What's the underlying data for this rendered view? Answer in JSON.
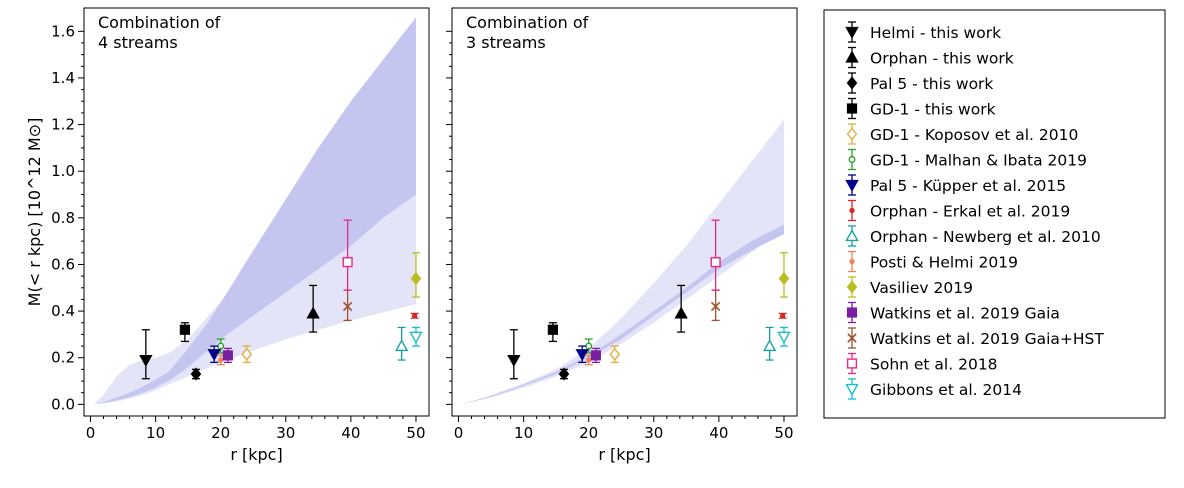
{
  "chart_data": [
    {
      "type": "scatter",
      "title": "",
      "annotation": [
        "Combination of",
        "4 streams"
      ],
      "xlabel": "r [kpc]",
      "ylabel": "M(< r kpc) [10^12 M⊙]",
      "xlim": [
        -1,
        52
      ],
      "ylim": [
        -0.05,
        1.7
      ],
      "xticks": [
        0,
        10,
        20,
        30,
        40,
        50
      ],
      "yticks": [
        0.0,
        0.2,
        0.4,
        0.6,
        0.8,
        1.0,
        1.2,
        1.4,
        1.6
      ],
      "bands": [
        {
          "name": "outer",
          "color": "#e3e4f8",
          "x": [
            0.5,
            2,
            4,
            6,
            8,
            10,
            12,
            15,
            20,
            25,
            30,
            35,
            40,
            45,
            50
          ],
          "lower": [
            0.0,
            0.005,
            0.012,
            0.025,
            0.04,
            0.06,
            0.085,
            0.12,
            0.18,
            0.23,
            0.28,
            0.32,
            0.36,
            0.395,
            0.43
          ],
          "upper": [
            0.0,
            0.04,
            0.12,
            0.17,
            0.19,
            0.2,
            0.22,
            0.28,
            0.44,
            0.56,
            0.67,
            0.75,
            0.8,
            0.86,
            0.9
          ]
        },
        {
          "name": "inner",
          "color": "#c5c6ef",
          "x": [
            1,
            3,
            6,
            9,
            12,
            15,
            18,
            21,
            25,
            30,
            35,
            40,
            45,
            50
          ],
          "lower": [
            0.0,
            0.01,
            0.03,
            0.06,
            0.1,
            0.16,
            0.23,
            0.3,
            0.38,
            0.48,
            0.58,
            0.68,
            0.8,
            0.9
          ],
          "upper": [
            0.0,
            0.02,
            0.05,
            0.09,
            0.14,
            0.24,
            0.35,
            0.48,
            0.66,
            0.88,
            1.1,
            1.3,
            1.48,
            1.66
          ]
        }
      ],
      "series": [
        {
          "name": "Helmi - this work",
          "marker": "tri-down",
          "filled": true,
          "color": "#000000",
          "points": [
            {
              "x": 8.5,
              "y": 0.19,
              "lo": 0.11,
              "hi": 0.32
            }
          ]
        },
        {
          "name": "Orphan - this work",
          "marker": "tri-up",
          "filled": true,
          "color": "#000000",
          "points": [
            {
              "x": 34.2,
              "y": 0.39,
              "lo": 0.31,
              "hi": 0.51
            }
          ]
        },
        {
          "name": "Pal 5 - this work",
          "marker": "diamond",
          "filled": true,
          "color": "#000000",
          "points": [
            {
              "x": 16.2,
              "y": 0.13,
              "lo": 0.11,
              "hi": 0.15
            }
          ]
        },
        {
          "name": "GD-1 - this work",
          "marker": "square",
          "filled": true,
          "color": "#000000",
          "points": [
            {
              "x": 14.5,
              "y": 0.32,
              "lo": 0.27,
              "hi": 0.35
            }
          ]
        },
        {
          "name": "GD-1 - Koposov et al. 2010",
          "marker": "diamond",
          "filled": false,
          "color": "#e5ae38",
          "points": [
            {
              "x": 24.0,
              "y": 0.215,
              "lo": 0.18,
              "hi": 0.25
            }
          ]
        },
        {
          "name": "GD-1 - Malhan & Ibata 2019",
          "marker": "circle-small",
          "filled": false,
          "color": "#2ca02c",
          "points": [
            {
              "x": 20.0,
              "y": 0.25,
              "lo": 0.22,
              "hi": 0.28
            }
          ]
        },
        {
          "name": "Pal 5 - Küpper et al.  2015",
          "marker": "tri-down",
          "filled": true,
          "color": "#00008b",
          "points": [
            {
              "x": 19.0,
              "y": 0.215,
              "lo": 0.18,
              "hi": 0.25
            }
          ]
        },
        {
          "name": "Orphan - Erkal et al. 2019",
          "marker": "dot",
          "filled": true,
          "color": "#d62728",
          "points": [
            {
              "x": 49.8,
              "y": 0.38,
              "lo": 0.37,
              "hi": 0.39
            }
          ]
        },
        {
          "name": "Orphan - Newberg et al. 2010",
          "marker": "tri-up",
          "filled": false,
          "color": "#17a2a2",
          "points": [
            {
              "x": 47.8,
              "y": 0.25,
              "lo": 0.19,
              "hi": 0.33
            }
          ]
        },
        {
          "name": "Posti & Helmi 2019",
          "marker": "dot",
          "filled": true,
          "color": "#f0835a",
          "points": [
            {
              "x": 20.0,
              "y": 0.19,
              "lo": 0.17,
              "hi": 0.21
            }
          ]
        },
        {
          "name": "Vasiliev 2019",
          "marker": "diamond",
          "filled": true,
          "color": "#bcbd22",
          "points": [
            {
              "x": 50.0,
              "y": 0.54,
              "lo": 0.46,
              "hi": 0.65
            }
          ]
        },
        {
          "name": "Watkins et al.  2019 Gaia",
          "marker": "square",
          "filled": true,
          "color": "#7b1fa2",
          "points": [
            {
              "x": 21.1,
              "y": 0.21,
              "lo": 0.18,
              "hi": 0.24
            }
          ]
        },
        {
          "name": "Watkins et al.  2019 Gaia$+$HST",
          "marker": "x",
          "filled": true,
          "color": "#a0522d",
          "points": [
            {
              "x": 39.5,
              "y": 0.42,
              "lo": 0.36,
              "hi": 0.49
            }
          ]
        },
        {
          "name": "Sohn et al.  2018",
          "marker": "square",
          "filled": false,
          "color": "#e7298a",
          "points": [
            {
              "x": 39.5,
              "y": 0.61,
              "lo": 0.49,
              "hi": 0.79
            }
          ]
        },
        {
          "name": "Gibbons et al.  2014",
          "marker": "tri-down",
          "filled": false,
          "color": "#17becf",
          "points": [
            {
              "x": 50.0,
              "y": 0.29,
              "lo": 0.25,
              "hi": 0.33
            }
          ]
        }
      ]
    },
    {
      "type": "scatter",
      "title": "",
      "annotation": [
        "Combination of",
        "3 streams"
      ],
      "xlabel": "r [kpc]",
      "ylabel": "",
      "xlim": [
        -1,
        52
      ],
      "ylim": [
        -0.05,
        1.7
      ],
      "xticks": [
        0,
        10,
        20,
        30,
        40,
        50
      ],
      "yticks": [
        0.0,
        0.2,
        0.4,
        0.6,
        0.8,
        1.0,
        1.2,
        1.4,
        1.6
      ],
      "bands": [
        {
          "name": "outer",
          "color": "#e3e4f8",
          "x": [
            0.5,
            5,
            10,
            15,
            20,
            25,
            30,
            35,
            40,
            45,
            50
          ],
          "lower": [
            0.0,
            0.03,
            0.07,
            0.12,
            0.18,
            0.26,
            0.35,
            0.45,
            0.55,
            0.65,
            0.76
          ],
          "upper": [
            0.0,
            0.04,
            0.09,
            0.15,
            0.24,
            0.37,
            0.52,
            0.68,
            0.86,
            1.04,
            1.22
          ]
        },
        {
          "name": "inner",
          "color": "#c5c6ef",
          "x": [
            0.5,
            5,
            10,
            15,
            20,
            25,
            30,
            35,
            40,
            45,
            50
          ],
          "lower": [
            0.0,
            0.03,
            0.08,
            0.13,
            0.2,
            0.28,
            0.38,
            0.48,
            0.58,
            0.66,
            0.73
          ],
          "upper": [
            0.0,
            0.035,
            0.085,
            0.14,
            0.21,
            0.3,
            0.4,
            0.5,
            0.61,
            0.7,
            0.77
          ]
        }
      ],
      "series": [
        {
          "name": "Helmi - this work",
          "marker": "tri-down",
          "filled": true,
          "color": "#000000",
          "points": [
            {
              "x": 8.5,
              "y": 0.19,
              "lo": 0.11,
              "hi": 0.32
            }
          ]
        },
        {
          "name": "Orphan - this work",
          "marker": "tri-up",
          "filled": true,
          "color": "#000000",
          "points": [
            {
              "x": 34.2,
              "y": 0.39,
              "lo": 0.31,
              "hi": 0.51
            }
          ]
        },
        {
          "name": "Pal 5 - this work",
          "marker": "diamond",
          "filled": true,
          "color": "#000000",
          "points": [
            {
              "x": 16.2,
              "y": 0.13,
              "lo": 0.11,
              "hi": 0.15
            }
          ]
        },
        {
          "name": "GD-1 - this work",
          "marker": "square",
          "filled": true,
          "color": "#000000",
          "points": [
            {
              "x": 14.5,
              "y": 0.32,
              "lo": 0.27,
              "hi": 0.35
            }
          ]
        },
        {
          "name": "GD-1 - Koposov et al. 2010",
          "marker": "diamond",
          "filled": false,
          "color": "#e5ae38",
          "points": [
            {
              "x": 24.0,
              "y": 0.215,
              "lo": 0.18,
              "hi": 0.25
            }
          ]
        },
        {
          "name": "GD-1 - Malhan & Ibata 2019",
          "marker": "circle-small",
          "filled": false,
          "color": "#2ca02c",
          "points": [
            {
              "x": 20.0,
              "y": 0.25,
              "lo": 0.22,
              "hi": 0.28
            }
          ]
        },
        {
          "name": "Pal 5 - Küpper et al.  2015",
          "marker": "tri-down",
          "filled": true,
          "color": "#00008b",
          "points": [
            {
              "x": 19.0,
              "y": 0.215,
              "lo": 0.18,
              "hi": 0.25
            }
          ]
        },
        {
          "name": "Orphan - Erkal et al. 2019",
          "marker": "dot",
          "filled": true,
          "color": "#d62728",
          "points": [
            {
              "x": 49.8,
              "y": 0.38,
              "lo": 0.37,
              "hi": 0.39
            }
          ]
        },
        {
          "name": "Orphan - Newberg et al. 2010",
          "marker": "tri-up",
          "filled": false,
          "color": "#17a2a2",
          "points": [
            {
              "x": 47.8,
              "y": 0.25,
              "lo": 0.19,
              "hi": 0.33
            }
          ]
        },
        {
          "name": "Posti & Helmi 2019",
          "marker": "dot",
          "filled": true,
          "color": "#f0835a",
          "points": [
            {
              "x": 20.0,
              "y": 0.19,
              "lo": 0.17,
              "hi": 0.21
            }
          ]
        },
        {
          "name": "Vasiliev 2019",
          "marker": "diamond",
          "filled": true,
          "color": "#bcbd22",
          "points": [
            {
              "x": 50.0,
              "y": 0.54,
              "lo": 0.46,
              "hi": 0.65
            }
          ]
        },
        {
          "name": "Watkins et al.  2019 Gaia",
          "marker": "square",
          "filled": true,
          "color": "#7b1fa2",
          "points": [
            {
              "x": 21.1,
              "y": 0.21,
              "lo": 0.18,
              "hi": 0.24
            }
          ]
        },
        {
          "name": "Watkins et al.  2019 Gaia$+$HST",
          "marker": "x",
          "filled": true,
          "color": "#a0522d",
          "points": [
            {
              "x": 39.5,
              "y": 0.42,
              "lo": 0.36,
              "hi": 0.49
            }
          ]
        },
        {
          "name": "Sohn et al.  2018",
          "marker": "square",
          "filled": false,
          "color": "#e7298a",
          "points": [
            {
              "x": 39.5,
              "y": 0.61,
              "lo": 0.49,
              "hi": 0.79
            }
          ]
        },
        {
          "name": "Gibbons et al.  2014",
          "marker": "tri-down",
          "filled": false,
          "color": "#17becf",
          "points": [
            {
              "x": 50.0,
              "y": 0.29,
              "lo": 0.25,
              "hi": 0.33
            }
          ]
        }
      ]
    }
  ],
  "legend": {
    "placement": "right",
    "entries": [
      {
        "label": "Helmi - this work",
        "marker": "tri-down",
        "filled": true,
        "color": "#000000"
      },
      {
        "label": "Orphan - this work",
        "marker": "tri-up",
        "filled": true,
        "color": "#000000"
      },
      {
        "label": "Pal 5 - this work",
        "marker": "diamond",
        "filled": true,
        "color": "#000000"
      },
      {
        "label": "GD-1 - this work",
        "marker": "square",
        "filled": true,
        "color": "#000000"
      },
      {
        "label": "GD-1 - Koposov et al. 2010",
        "marker": "diamond",
        "filled": false,
        "color": "#e5ae38"
      },
      {
        "label": "GD-1 - Malhan & Ibata 2019",
        "marker": "circle-small",
        "filled": false,
        "color": "#2ca02c"
      },
      {
        "label": "Pal 5 - Küpper et al.  2015",
        "marker": "tri-down",
        "filled": true,
        "color": "#00008b"
      },
      {
        "label": "Orphan - Erkal et al. 2019",
        "marker": "dot",
        "filled": true,
        "color": "#d62728"
      },
      {
        "label": "Orphan - Newberg et al. 2010",
        "marker": "tri-up",
        "filled": false,
        "color": "#17a2a2"
      },
      {
        "label": "Posti & Helmi 2019",
        "marker": "dot",
        "filled": true,
        "color": "#f0835a"
      },
      {
        "label": "Vasiliev 2019",
        "marker": "diamond",
        "filled": true,
        "color": "#bcbd22"
      },
      {
        "label": "Watkins et al.  2019 Gaia",
        "marker": "square",
        "filled": true,
        "color": "#7b1fa2"
      },
      {
        "label": "Watkins et al.  2019 Gaia+HST",
        "marker": "x",
        "filled": true,
        "color": "#a0522d"
      },
      {
        "label": "Sohn et al.  2018",
        "marker": "square",
        "filled": false,
        "color": "#e7298a"
      },
      {
        "label": "Gibbons et al.  2014",
        "marker": "tri-down",
        "filled": false,
        "color": "#17becf"
      }
    ]
  }
}
